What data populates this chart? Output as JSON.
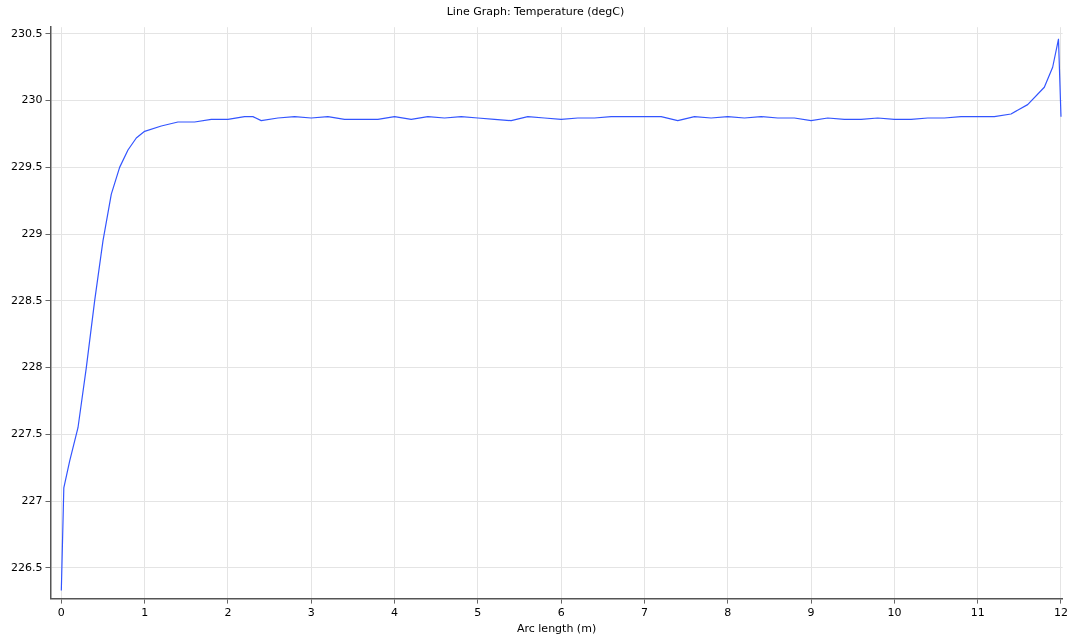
{
  "chart_data": {
    "type": "line",
    "title": "Line Graph: Temperature (degC)",
    "xlabel": "Arc length (m)",
    "x": [
      0,
      0.03,
      0.1,
      0.2,
      0.3,
      0.4,
      0.5,
      0.6,
      0.7,
      0.8,
      0.9,
      1.0,
      1.2,
      1.4,
      1.6,
      1.8,
      2.0,
      2.2,
      2.3,
      2.4,
      2.6,
      2.8,
      3.0,
      3.2,
      3.4,
      3.6,
      3.8,
      4.0,
      4.2,
      4.4,
      4.6,
      4.8,
      5.0,
      5.2,
      5.4,
      5.6,
      5.8,
      6.0,
      6.2,
      6.4,
      6.6,
      6.8,
      7.0,
      7.2,
      7.4,
      7.6,
      7.8,
      8.0,
      8.2,
      8.4,
      8.6,
      8.8,
      9.0,
      9.2,
      9.4,
      9.6,
      9.8,
      10.0,
      10.2,
      10.4,
      10.6,
      10.8,
      11.0,
      11.2,
      11.4,
      11.6,
      11.8,
      11.9,
      11.97,
      12.0
    ],
    "series": [
      {
        "color": "#3355ff",
        "values": [
          226.33,
          227.1,
          227.3,
          227.55,
          228.0,
          228.5,
          228.95,
          229.3,
          229.5,
          229.63,
          229.72,
          229.77,
          229.81,
          229.84,
          229.84,
          229.86,
          229.86,
          229.88,
          229.88,
          229.85,
          229.87,
          229.88,
          229.87,
          229.88,
          229.86,
          229.86,
          229.86,
          229.88,
          229.86,
          229.88,
          229.87,
          229.88,
          229.87,
          229.86,
          229.85,
          229.88,
          229.87,
          229.86,
          229.87,
          229.87,
          229.88,
          229.88,
          229.88,
          229.88,
          229.85,
          229.88,
          229.87,
          229.88,
          229.87,
          229.88,
          229.87,
          229.87,
          229.85,
          229.87,
          229.86,
          229.86,
          229.87,
          229.86,
          229.86,
          229.87,
          229.87,
          229.88,
          229.88,
          229.88,
          229.9,
          229.97,
          230.1,
          230.25,
          230.46,
          229.88
        ]
      }
    ],
    "xlim": [
      -0.13,
      12.02
    ],
    "xticks": [
      0,
      1,
      2,
      3,
      4,
      5,
      6,
      7,
      8,
      9,
      10,
      11,
      12
    ],
    "ylim": [
      226.27,
      230.55
    ],
    "yticks": [
      226.5,
      227,
      227.5,
      228,
      228.5,
      229,
      229.5,
      230,
      230.5
    ],
    "grid": true,
    "legend": false,
    "marker": "none",
    "line_style": "solid"
  }
}
